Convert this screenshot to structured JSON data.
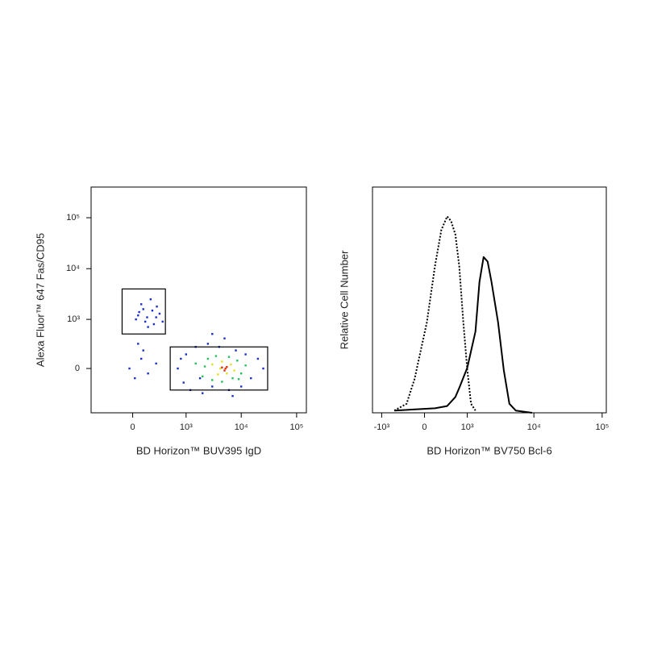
{
  "chart_data": [
    {
      "type": "scatter",
      "xlabel": "BD Horizon™ BUV395 IgD",
      "ylabel": "Alexa Fluor™ 647 Fas/CD95",
      "xscale": "biexponential",
      "yscale": "biexponential",
      "xlim": [
        -600,
        150000
      ],
      "ylim": [
        -800,
        400000
      ],
      "xticks": [
        0,
        {
          "value": 1000,
          "label": "10³"
        },
        {
          "value": 10000,
          "label": "10⁴"
        },
        {
          "value": 100000,
          "label": "10⁵"
        }
      ],
      "yticks": [
        0,
        {
          "value": 1000,
          "label": "10³"
        },
        {
          "value": 10000,
          "label": "10⁴"
        },
        {
          "value": 100000,
          "label": "10⁵"
        }
      ],
      "series": [
        {
          "color": "#1a2fc8",
          "x": [
            50,
            120,
            200,
            80,
            250,
            150,
            300,
            30,
            180,
            100,
            220,
            350,
            60,
            260,
            140,
            50,
            100,
            -30,
            20,
            150,
            250,
            80,
            700,
            900,
            1000,
            1200,
            1500,
            2000,
            2500,
            3000,
            4000,
            6000,
            8000,
            10000,
            12000,
            15000,
            20000,
            25000,
            800,
            1800,
            5000,
            3000,
            7000
          ],
          "values": [
            1200,
            900,
            1500,
            2000,
            1100,
            700,
            1300,
            1000,
            2500,
            1600,
            800,
            900,
            1400,
            1800,
            1100,
            300,
            200,
            0,
            -100,
            -50,
            50,
            100,
            0,
            -150,
            150,
            -250,
            250,
            -300,
            300,
            -200,
            250,
            -250,
            200,
            -200,
            150,
            -100,
            100,
            0,
            100,
            -100,
            400,
            500,
            -350
          ]
        },
        {
          "color": "#22c05a",
          "x": [
            1500,
            2000,
            2500,
            3000,
            3500,
            4500,
            6000,
            7000,
            8500,
            10000,
            12000,
            2200,
            9000
          ],
          "values": [
            50,
            -80,
            100,
            -120,
            130,
            -140,
            120,
            -100,
            80,
            -50,
            30,
            20,
            -110
          ]
        },
        {
          "color": "#e2e020",
          "x": [
            3000,
            3800,
            4500,
            5500,
            6500,
            7500,
            4200
          ],
          "values": [
            40,
            -60,
            70,
            -50,
            40,
            -20,
            0
          ]
        },
        {
          "color": "#e03010",
          "x": [
            4500,
            5000,
            5500,
            5200
          ],
          "values": [
            10,
            -20,
            15,
            0
          ]
        }
      ],
      "gates": [
        {
          "x": [
            -100,
            400
          ],
          "y": [
            500,
            4000
          ]
        },
        {
          "x": [
            500,
            30000
          ],
          "y": [
            -250,
            250
          ]
        }
      ]
    },
    {
      "type": "line",
      "xlabel": "BD Horizon™ BV750 Bcl-6",
      "ylabel": "Relative Cell Number",
      "xscale": "biexponential",
      "xlim": [
        -1400,
        115000
      ],
      "ylim": [
        0,
        100
      ],
      "xticks": [
        {
          "value": -1000,
          "label": "-10³"
        },
        0,
        {
          "value": 1000,
          "label": "10³"
        },
        {
          "value": 10000,
          "label": "10⁴"
        },
        {
          "value": 100000,
          "label": "10⁵"
        }
      ],
      "series": [
        {
          "color": "#000000",
          "dash": "dotted",
          "x": [
            -600,
            -320,
            -170,
            40,
            180,
            300,
            420,
            510,
            620,
            730,
            860,
            1000,
            1150,
            1350
          ],
          "values": [
            1,
            4,
            15,
            40,
            65,
            81,
            87,
            85,
            79,
            65,
            40,
            19,
            4,
            1
          ]
        },
        {
          "color": "#000000",
          "dash": "solid",
          "x": [
            -600,
            180,
            420,
            620,
            730,
            1000,
            1350,
            1560,
            1800,
            2070,
            2370,
            2970,
            3600,
            4360,
            5420,
            9400
          ],
          "values": [
            1,
            2,
            3,
            7,
            11,
            20,
            36,
            58,
            69,
            67,
            58,
            40,
            19,
            4,
            1,
            0
          ]
        }
      ]
    }
  ]
}
